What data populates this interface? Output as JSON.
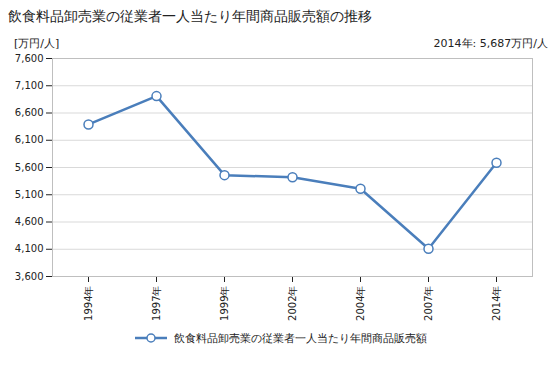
{
  "chart_data": {
    "type": "line",
    "title": "飲食料品卸売業の従業者一人当たり年間商品販売額の推移",
    "subtitle": "2014年: 5,687万円/人",
    "y_label": "[万円/人]",
    "categories": [
      "1994年",
      "1997年",
      "1999年",
      "2002年",
      "2004年",
      "2007年",
      "2014年"
    ],
    "series": [
      {
        "name": "飲食料品卸売業の従業者一人当たり年間商品販売額",
        "color": "#4a7ebb",
        "marker": "circle",
        "values": [
          6390,
          6910,
          5460,
          5420,
          5210,
          4110,
          5687
        ]
      }
    ],
    "ylim": [
      3600,
      7600
    ],
    "yticks": [
      {
        "value": 3600,
        "label": "3,600"
      },
      {
        "value": 4100,
        "label": "4,100"
      },
      {
        "value": 4600,
        "label": "4,600"
      },
      {
        "value": 5100,
        "label": "5,100"
      },
      {
        "value": 5600,
        "label": "5,600"
      },
      {
        "value": 6100,
        "label": "6,100"
      },
      {
        "value": 6600,
        "label": "6,600"
      },
      {
        "value": 7100,
        "label": "7,100"
      },
      {
        "value": 7600,
        "label": "7,600"
      }
    ],
    "grid": true,
    "legend": "bottom"
  }
}
